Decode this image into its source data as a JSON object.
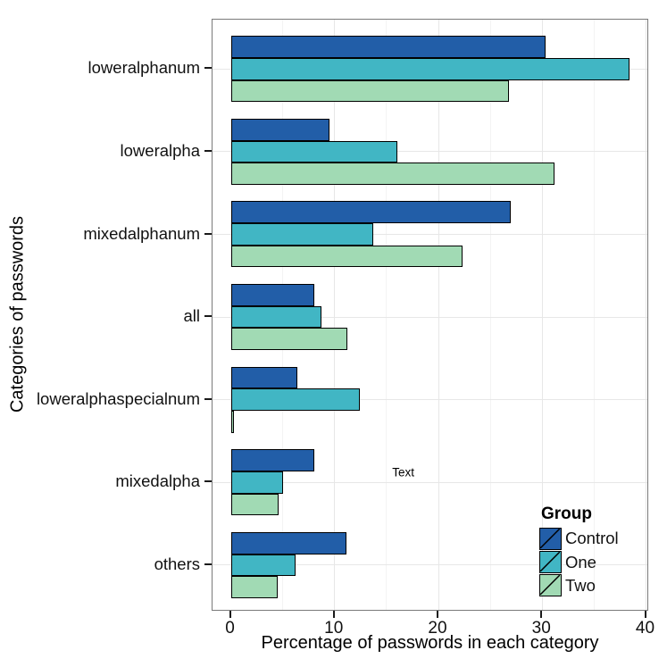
{
  "chart_data": {
    "type": "bar",
    "orientation": "horizontal",
    "title": "",
    "xlabel": "Percentage of passwords in each category",
    "ylabel": "Categories of passwords",
    "categories": [
      "loweralphanum",
      "loweralpha",
      "mixedalphanum",
      "all",
      "loweralphaspecialnum",
      "mixedalpha",
      "others"
    ],
    "series": [
      {
        "name": "Control",
        "color": "#225EA8",
        "values": [
          30.3,
          9.5,
          27.0,
          8.0,
          6.4,
          8.0,
          11.1
        ]
      },
      {
        "name": "One",
        "color": "#41B6C4",
        "values": [
          38.4,
          16.0,
          13.7,
          8.7,
          12.4,
          5.0,
          6.2
        ]
      },
      {
        "name": "Two",
        "color": "#A1DAB4",
        "values": [
          26.8,
          31.2,
          22.3,
          11.2,
          0.1,
          4.6,
          4.5
        ]
      }
    ],
    "xlim": [
      0,
      40
    ],
    "x_major_ticks": [
      0,
      10,
      20,
      30,
      40
    ],
    "x_minor_ticks": [
      5,
      15,
      25,
      35
    ],
    "grid": true,
    "legend": {
      "title": "Group",
      "position": "inside bottom-right"
    },
    "annotation": {
      "label": "Text",
      "x": 16.7,
      "category": "mixedalpha",
      "dy": -10
    }
  },
  "colors": {
    "bar_border": "#000000",
    "panel_border": "#7a7a7a",
    "grid_major": "#e7e7e7",
    "grid_minor": "#f3f3f3",
    "text": "#000000"
  }
}
